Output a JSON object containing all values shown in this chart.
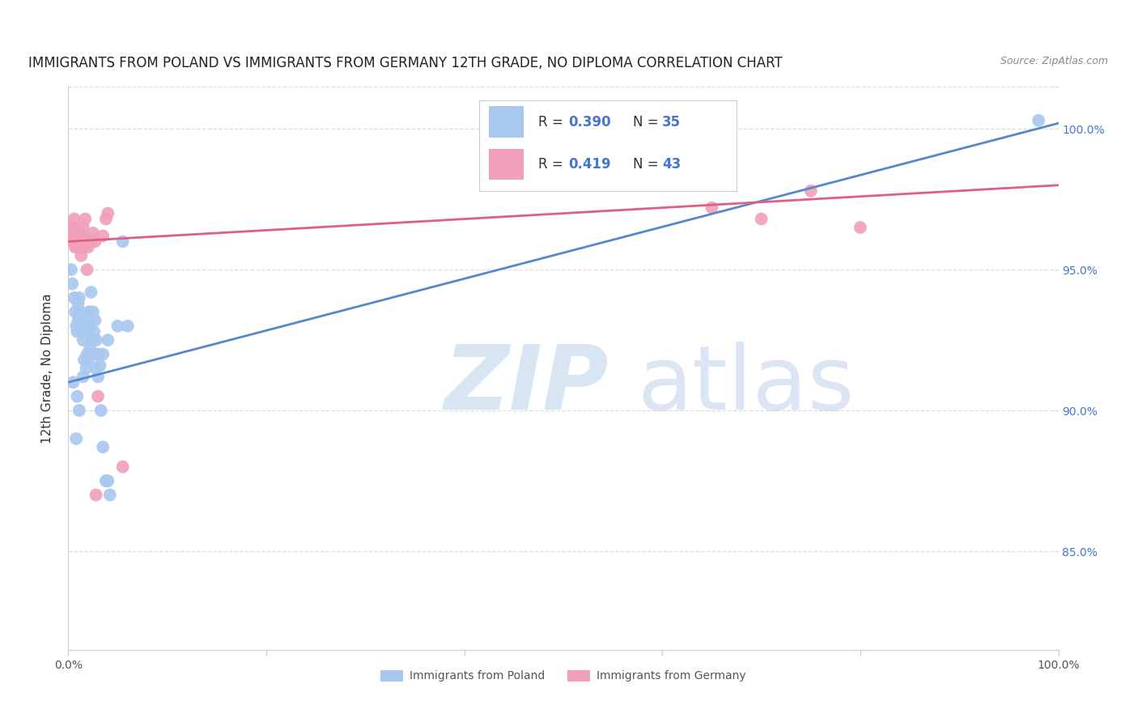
{
  "title": "IMMIGRANTS FROM POLAND VS IMMIGRANTS FROM GERMANY 12TH GRADE, NO DIPLOMA CORRELATION CHART",
  "source": "Source: ZipAtlas.com",
  "ylabel": "12th Grade, No Diploma",
  "ylabel_right_ticks": [
    "85.0%",
    "90.0%",
    "95.0%",
    "100.0%"
  ],
  "ylabel_right_vals": [
    0.85,
    0.9,
    0.95,
    1.0
  ],
  "xlim": [
    0.0,
    1.0
  ],
  "ylim": [
    0.815,
    1.015
  ],
  "blue_label": "Immigrants from Poland",
  "pink_label": "Immigrants from Germany",
  "blue_color": "#A8C8F0",
  "pink_color": "#F0A0B8",
  "blue_line_color": "#5588CC",
  "pink_line_color": "#E06080",
  "blue_scatter_x": [
    0.003,
    0.004,
    0.006,
    0.007,
    0.008,
    0.009,
    0.01,
    0.01,
    0.011,
    0.012,
    0.013,
    0.014,
    0.015,
    0.016,
    0.017,
    0.018,
    0.019,
    0.02,
    0.021,
    0.022,
    0.023,
    0.024,
    0.025,
    0.026,
    0.027,
    0.028,
    0.03,
    0.032,
    0.033,
    0.035,
    0.038,
    0.04,
    0.042,
    0.98
  ],
  "blue_scatter_y": [
    0.95,
    0.945,
    0.94,
    0.935,
    0.93,
    0.928,
    0.932,
    0.938,
    0.94,
    0.935,
    0.93,
    0.928,
    0.925,
    0.93,
    0.932,
    0.928,
    0.92,
    0.93,
    0.935,
    0.93,
    0.942,
    0.925,
    0.935,
    0.928,
    0.932,
    0.925,
    0.92,
    0.916,
    0.9,
    0.887,
    0.875,
    0.875,
    0.87,
    1.003
  ],
  "blue_scatter_x2": [
    0.005,
    0.008,
    0.009,
    0.011,
    0.015,
    0.016,
    0.018,
    0.02,
    0.022,
    0.025,
    0.028,
    0.03,
    0.035,
    0.04,
    0.05,
    0.055,
    0.06
  ],
  "blue_scatter_y2": [
    0.91,
    0.89,
    0.905,
    0.9,
    0.912,
    0.918,
    0.915,
    0.918,
    0.922,
    0.92,
    0.915,
    0.912,
    0.92,
    0.925,
    0.93,
    0.96,
    0.93
  ],
  "pink_scatter_x": [
    0.003,
    0.004,
    0.005,
    0.005,
    0.006,
    0.006,
    0.007,
    0.007,
    0.008,
    0.008,
    0.009,
    0.009,
    0.01,
    0.01,
    0.011,
    0.012,
    0.012,
    0.013,
    0.013,
    0.014,
    0.015,
    0.015,
    0.016,
    0.017,
    0.018,
    0.019,
    0.02,
    0.021,
    0.022,
    0.023,
    0.025,
    0.027,
    0.028,
    0.03,
    0.035,
    0.038,
    0.04,
    0.055,
    0.62,
    0.65,
    0.7,
    0.75,
    0.8
  ],
  "pink_scatter_y": [
    0.965,
    0.962,
    0.965,
    0.96,
    0.962,
    0.968,
    0.964,
    0.958,
    0.963,
    0.96,
    0.962,
    0.958,
    0.962,
    0.96,
    0.96,
    0.963,
    0.958,
    0.96,
    0.955,
    0.962,
    0.965,
    0.958,
    0.962,
    0.968,
    0.96,
    0.95,
    0.958,
    0.96,
    0.96,
    0.96,
    0.963,
    0.96,
    0.87,
    0.905,
    0.962,
    0.968,
    0.97,
    0.88,
    0.98,
    0.972,
    0.968,
    0.978,
    0.965
  ],
  "grid_color": "#DDDDDD",
  "background_color": "#FFFFFF",
  "title_fontsize": 12,
  "source_fontsize": 9,
  "axis_label_fontsize": 11,
  "tick_fontsize": 10,
  "right_tick_color": "#4477CC"
}
